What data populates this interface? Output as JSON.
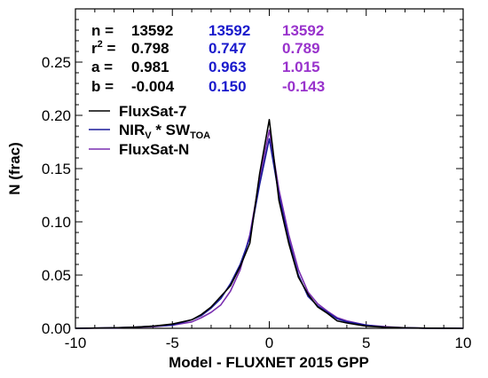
{
  "chart_data": {
    "type": "line",
    "xlabel": "Model - FLUXNET 2015 GPP",
    "ylabel": "N (frac)",
    "xlim": [
      -10,
      10
    ],
    "ylim": [
      0,
      0.3
    ],
    "xticks": [
      -10,
      -5,
      0,
      5,
      10
    ],
    "xtick_labels": [
      "-10",
      "-5",
      "0",
      "5",
      "10"
    ],
    "yticks": [
      0.0,
      0.05,
      0.1,
      0.15,
      0.2,
      0.25
    ],
    "ytick_labels": [
      "0.00",
      "0.05",
      "0.10",
      "0.15",
      "0.20",
      "0.25"
    ],
    "legend": {
      "placement": "upper-left",
      "entries": [
        {
          "text": "FluxSat-7",
          "color": "#000000"
        },
        {
          "text": "NIR",
          "sub1": "V",
          "mid": " * SW",
          "sub2": "TOA",
          "color": "#1a1a9a"
        },
        {
          "text": "FluxSat-N",
          "color": "#7a2fb0"
        }
      ]
    },
    "stats": {
      "labels": [
        "n =",
        "r",
        "a =",
        "b ="
      ],
      "r_sup": "2",
      "r_suffix": " =",
      "columns": [
        {
          "color": "#000000",
          "values": [
            "13592",
            "0.798",
            "0.981",
            "-0.004"
          ]
        },
        {
          "color": "#1a1acc",
          "values": [
            "13592",
            "0.747",
            "0.963",
            "0.150"
          ]
        },
        {
          "color": "#9933cc",
          "values": [
            "13592",
            "0.789",
            "1.015",
            "-0.143"
          ]
        }
      ]
    },
    "series": [
      {
        "name": "FluxSat-7",
        "color": "#000000",
        "x": [
          -10,
          -8,
          -7,
          -6,
          -5,
          -4,
          -3.5,
          -3,
          -2.5,
          -2,
          -1.5,
          -1,
          -0.5,
          0,
          0.5,
          1,
          1.5,
          2,
          2.5,
          3,
          3.5,
          4,
          5,
          6,
          7,
          8,
          10
        ],
        "y": [
          0,
          0.0005,
          0.001,
          0.002,
          0.004,
          0.008,
          0.013,
          0.02,
          0.03,
          0.04,
          0.058,
          0.08,
          0.145,
          0.196,
          0.12,
          0.08,
          0.048,
          0.032,
          0.02,
          0.014,
          0.007,
          0.005,
          0.002,
          0.001,
          0.0005,
          0.0002,
          0
        ]
      },
      {
        "name": "NIR_V * SW_TOA",
        "color": "#1a1a9a",
        "x": [
          -10,
          -8,
          -7,
          -6,
          -5,
          -4,
          -3.5,
          -3,
          -2.5,
          -2,
          -1.5,
          -1,
          -0.5,
          0,
          0.5,
          1,
          1.5,
          2,
          2.5,
          3,
          3.5,
          4,
          5,
          6,
          7,
          8,
          10
        ],
        "y": [
          0,
          0.0005,
          0.001,
          0.002,
          0.003,
          0.008,
          0.012,
          0.019,
          0.028,
          0.042,
          0.06,
          0.085,
          0.135,
          0.178,
          0.125,
          0.083,
          0.05,
          0.03,
          0.021,
          0.015,
          0.009,
          0.006,
          0.003,
          0.001,
          0.0005,
          0.0002,
          0
        ]
      },
      {
        "name": "FluxSat-N",
        "color": "#7a2fb0",
        "x": [
          -10,
          -8,
          -7,
          -6,
          -5,
          -4,
          -3.5,
          -3,
          -2.5,
          -2,
          -1.5,
          -1,
          -0.5,
          0,
          0.5,
          1,
          1.5,
          2,
          2.5,
          3,
          3.5,
          4,
          5,
          6,
          7,
          8,
          10
        ],
        "y": [
          0,
          0.0003,
          0.001,
          0.0015,
          0.003,
          0.006,
          0.01,
          0.015,
          0.022,
          0.035,
          0.055,
          0.088,
          0.14,
          0.186,
          0.13,
          0.088,
          0.055,
          0.034,
          0.023,
          0.016,
          0.01,
          0.007,
          0.003,
          0.0015,
          0.0005,
          0.0002,
          0
        ]
      }
    ]
  }
}
